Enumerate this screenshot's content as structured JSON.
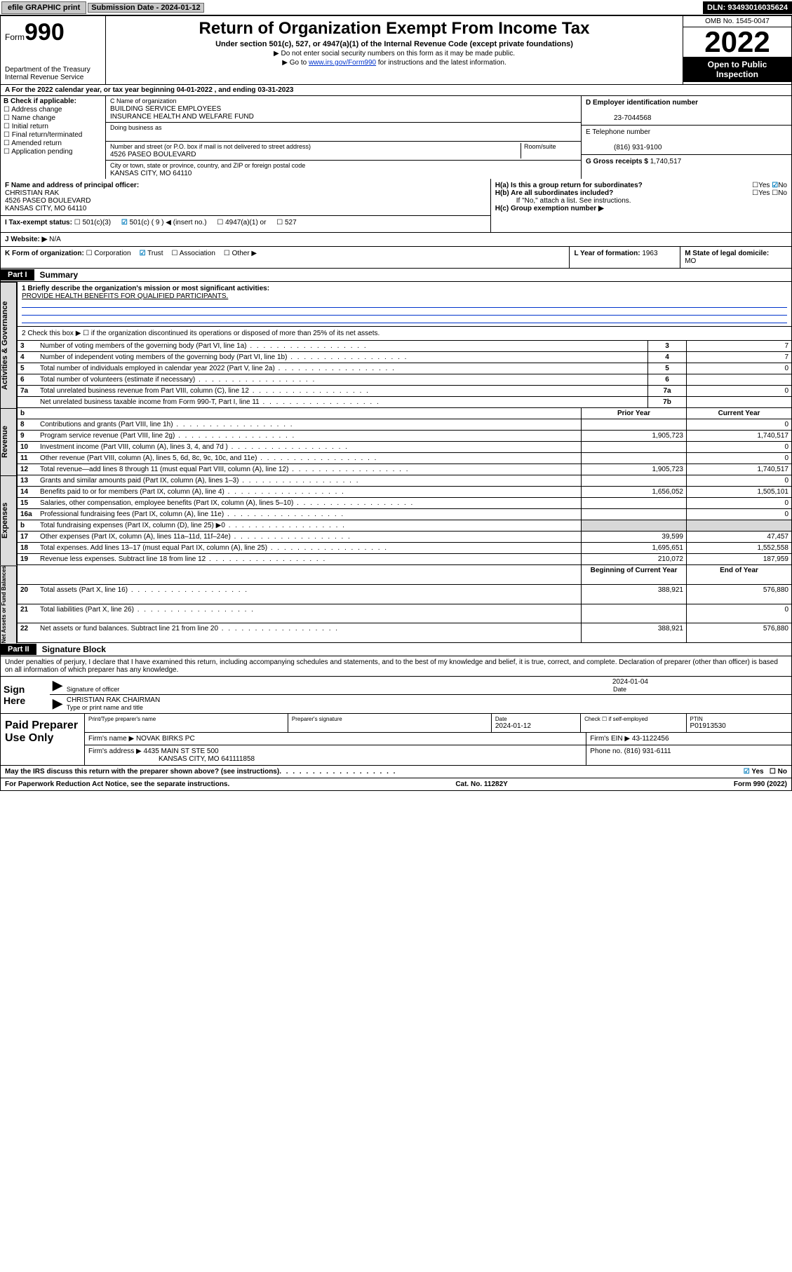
{
  "topbar": {
    "efile_label": "efile GRAPHIC print",
    "submission_label": "Submission Date - 2024-01-12",
    "dln_label": "DLN: 93493016035624"
  },
  "header": {
    "form_prefix": "Form",
    "form_number": "990",
    "dept1": "Department of the Treasury",
    "dept2": "Internal Revenue Service",
    "title": "Return of Organization Exempt From Income Tax",
    "sub1": "Under section 501(c), 527, or 4947(a)(1) of the Internal Revenue Code (except private foundations)",
    "sub2": "▶ Do not enter social security numbers on this form as it may be made public.",
    "sub3_pre": "▶ Go to ",
    "sub3_link": "www.irs.gov/Form990",
    "sub3_post": " for instructions and the latest information.",
    "omb": "OMB No. 1545-0047",
    "year": "2022",
    "open1": "Open to Public",
    "open2": "Inspection"
  },
  "line_a": {
    "text": "A For the 2022 calendar year, or tax year beginning 04-01-2022   , and ending 03-31-2023"
  },
  "b": {
    "title": "B Check if applicable:",
    "items": [
      "Address change",
      "Name change",
      "Initial return",
      "Final return/terminated",
      "Amended return",
      "Application pending"
    ]
  },
  "c": {
    "name_lbl": "C Name of organization",
    "name1": "BUILDING SERVICE EMPLOYEES",
    "name2": "INSURANCE HEALTH AND WELFARE FUND",
    "dba_lbl": "Doing business as",
    "addr_lbl": "Number and street (or P.O. box if mail is not delivered to street address)",
    "room_lbl": "Room/suite",
    "addr": "4526 PASEO BOULEVARD",
    "city_lbl": "City or town, state or province, country, and ZIP or foreign postal code",
    "city": "KANSAS CITY, MO  64110"
  },
  "d": {
    "lbl": "D Employer identification number",
    "val": "23-7044568"
  },
  "e": {
    "lbl": "E Telephone number",
    "val": "(816) 931-9100"
  },
  "g": {
    "lbl": "G Gross receipts $",
    "val": "1,740,517"
  },
  "f": {
    "lbl": "F  Name and address of principal officer:",
    "name": "CHRISTIAN RAK",
    "addr1": "4526 PASEO BOULEVARD",
    "addr2": "KANSAS CITY, MO  64110"
  },
  "h": {
    "a_lbl": "H(a)  Is this a group return for subordinates?",
    "b_lbl": "H(b)  Are all subordinates included?",
    "no_attach": "If \"No,\" attach a list. See instructions.",
    "c_lbl": "H(c)  Group exemption number ▶",
    "yes": "Yes",
    "no": "No",
    "no_checked": "✔"
  },
  "i": {
    "lbl": "I   Tax-exempt status:",
    "c3": "501(c)(3)",
    "c": "501(c) ( 9 ) ◀ (insert no.)",
    "a1": "4947(a)(1) or",
    "s527": "527"
  },
  "j": {
    "lbl": "J   Website: ▶",
    "val": "N/A"
  },
  "k": {
    "lbl": "K Form of organization:",
    "opts": [
      "Corporation",
      "Trust",
      "Association",
      "Other ▶"
    ],
    "checked_idx": 1
  },
  "l": {
    "lbl": "L Year of formation:",
    "val": "1963"
  },
  "m": {
    "lbl": "M State of legal domicile:",
    "val": "MO"
  },
  "part1": {
    "label": "Part I",
    "title": "Summary",
    "q1_lbl": "1  Briefly describe the organization's mission or most significant activities:",
    "q1_val": "PROVIDE HEALTH BENEFITS FOR QUALIFIED PARTICIPANTS.",
    "q2": "2   Check this box ▶ ☐  if the organization discontinued its operations or disposed of more than 25% of its net assets.",
    "lines_gov": [
      {
        "n": "3",
        "t": "Number of voting members of the governing body (Part VI, line 1a)",
        "box": "3",
        "v": "7"
      },
      {
        "n": "4",
        "t": "Number of independent voting members of the governing body (Part VI, line 1b)",
        "box": "4",
        "v": "7"
      },
      {
        "n": "5",
        "t": "Total number of individuals employed in calendar year 2022 (Part V, line 2a)",
        "box": "5",
        "v": "0"
      },
      {
        "n": "6",
        "t": "Total number of volunteers (estimate if necessary)",
        "box": "6",
        "v": ""
      },
      {
        "n": "7a",
        "t": "Total unrelated business revenue from Part VIII, column (C), line 12",
        "box": "7a",
        "v": "0"
      },
      {
        "n": "",
        "t": "Net unrelated business taxable income from Form 990-T, Part I, line 11",
        "box": "7b",
        "v": ""
      }
    ],
    "rev_header": {
      "n": "b",
      "py": "Prior Year",
      "cy": "Current Year"
    },
    "rev_lines": [
      {
        "n": "8",
        "t": "Contributions and grants (Part VIII, line 1h)",
        "py": "",
        "cy": "0"
      },
      {
        "n": "9",
        "t": "Program service revenue (Part VIII, line 2g)",
        "py": "1,905,723",
        "cy": "1,740,517"
      },
      {
        "n": "10",
        "t": "Investment income (Part VIII, column (A), lines 3, 4, and 7d )",
        "py": "",
        "cy": "0"
      },
      {
        "n": "11",
        "t": "Other revenue (Part VIII, column (A), lines 5, 6d, 8c, 9c, 10c, and 11e)",
        "py": "",
        "cy": "0"
      },
      {
        "n": "12",
        "t": "Total revenue—add lines 8 through 11 (must equal Part VIII, column (A), line 12)",
        "py": "1,905,723",
        "cy": "1,740,517"
      }
    ],
    "exp_lines": [
      {
        "n": "13",
        "t": "Grants and similar amounts paid (Part IX, column (A), lines 1–3)",
        "py": "",
        "cy": "0"
      },
      {
        "n": "14",
        "t": "Benefits paid to or for members (Part IX, column (A), line 4)",
        "py": "1,656,052",
        "cy": "1,505,101"
      },
      {
        "n": "15",
        "t": "Salaries, other compensation, employee benefits (Part IX, column (A), lines 5–10)",
        "py": "",
        "cy": "0"
      },
      {
        "n": "16a",
        "t": "Professional fundraising fees (Part IX, column (A), line 11e)",
        "py": "",
        "cy": "0"
      },
      {
        "n": "b",
        "t": "Total fundraising expenses (Part IX, column (D), line 25) ▶0",
        "py": "__gray__",
        "cy": "__gray__"
      },
      {
        "n": "17",
        "t": "Other expenses (Part IX, column (A), lines 11a–11d, 11f–24e)",
        "py": "39,599",
        "cy": "47,457"
      },
      {
        "n": "18",
        "t": "Total expenses. Add lines 13–17 (must equal Part IX, column (A), line 25)",
        "py": "1,695,651",
        "cy": "1,552,558"
      },
      {
        "n": "19",
        "t": "Revenue less expenses. Subtract line 18 from line 12",
        "py": "210,072",
        "cy": "187,959"
      }
    ],
    "na_header": {
      "py": "Beginning of Current Year",
      "cy": "End of Year"
    },
    "na_lines": [
      {
        "n": "20",
        "t": "Total assets (Part X, line 16)",
        "py": "388,921",
        "cy": "576,880"
      },
      {
        "n": "21",
        "t": "Total liabilities (Part X, line 26)",
        "py": "",
        "cy": "0"
      },
      {
        "n": "22",
        "t": "Net assets or fund balances. Subtract line 21 from line 20",
        "py": "388,921",
        "cy": "576,880"
      }
    ]
  },
  "vlabels": {
    "gov": "Activities & Governance",
    "rev": "Revenue",
    "exp": "Expenses",
    "na": "Net Assets or Fund Balances"
  },
  "part2": {
    "label": "Part II",
    "title": "Signature Block",
    "penalties": "Under penalties of perjury, I declare that I have examined this return, including accompanying schedules and statements, and to the best of my knowledge and belief, it is true, correct, and complete. Declaration of preparer (other than officer) is based on all information of which preparer has any knowledge.",
    "sign_here": "Sign Here",
    "sig_officer_lbl": "Signature of officer",
    "sig_date": "2024-01-04",
    "date_lbl": "Date",
    "officer_name": "CHRISTIAN RAK  CHAIRMAN",
    "officer_type_lbl": "Type or print name and title"
  },
  "prep": {
    "label": "Paid Preparer Use Only",
    "print_lbl": "Print/Type preparer's name",
    "sig_lbl": "Preparer's signature",
    "date_lbl": "Date",
    "date_val": "2024-01-12",
    "check_lbl": "Check ☐ if self-employed",
    "ptin_lbl": "PTIN",
    "ptin_val": "P01913530",
    "firm_name_lbl": "Firm's name    ▶",
    "firm_name": "NOVAK BIRKS PC",
    "firm_ein_lbl": "Firm's EIN ▶",
    "firm_ein": "43-1122456",
    "firm_addr_lbl": "Firm's address ▶",
    "firm_addr1": "4435 MAIN ST STE 500",
    "firm_addr2": "KANSAS CITY, MO  641111858",
    "phone_lbl": "Phone no.",
    "phone_val": "(816) 931-6111"
  },
  "may_irs": {
    "q": "May the IRS discuss this return with the preparer shown above? (see instructions)",
    "yes": "Yes",
    "no": "No",
    "yes_checked": "✔"
  },
  "footer": {
    "left": "For Paperwork Reduction Act Notice, see the separate instructions.",
    "mid": "Cat. No. 11282Y",
    "right": "Form 990 (2022)"
  },
  "colors": {
    "link": "#0033cc",
    "check_blue": "#007bbb",
    "gray_bg": "#d8d8d8",
    "btn_gray": "#c8c8c8"
  }
}
